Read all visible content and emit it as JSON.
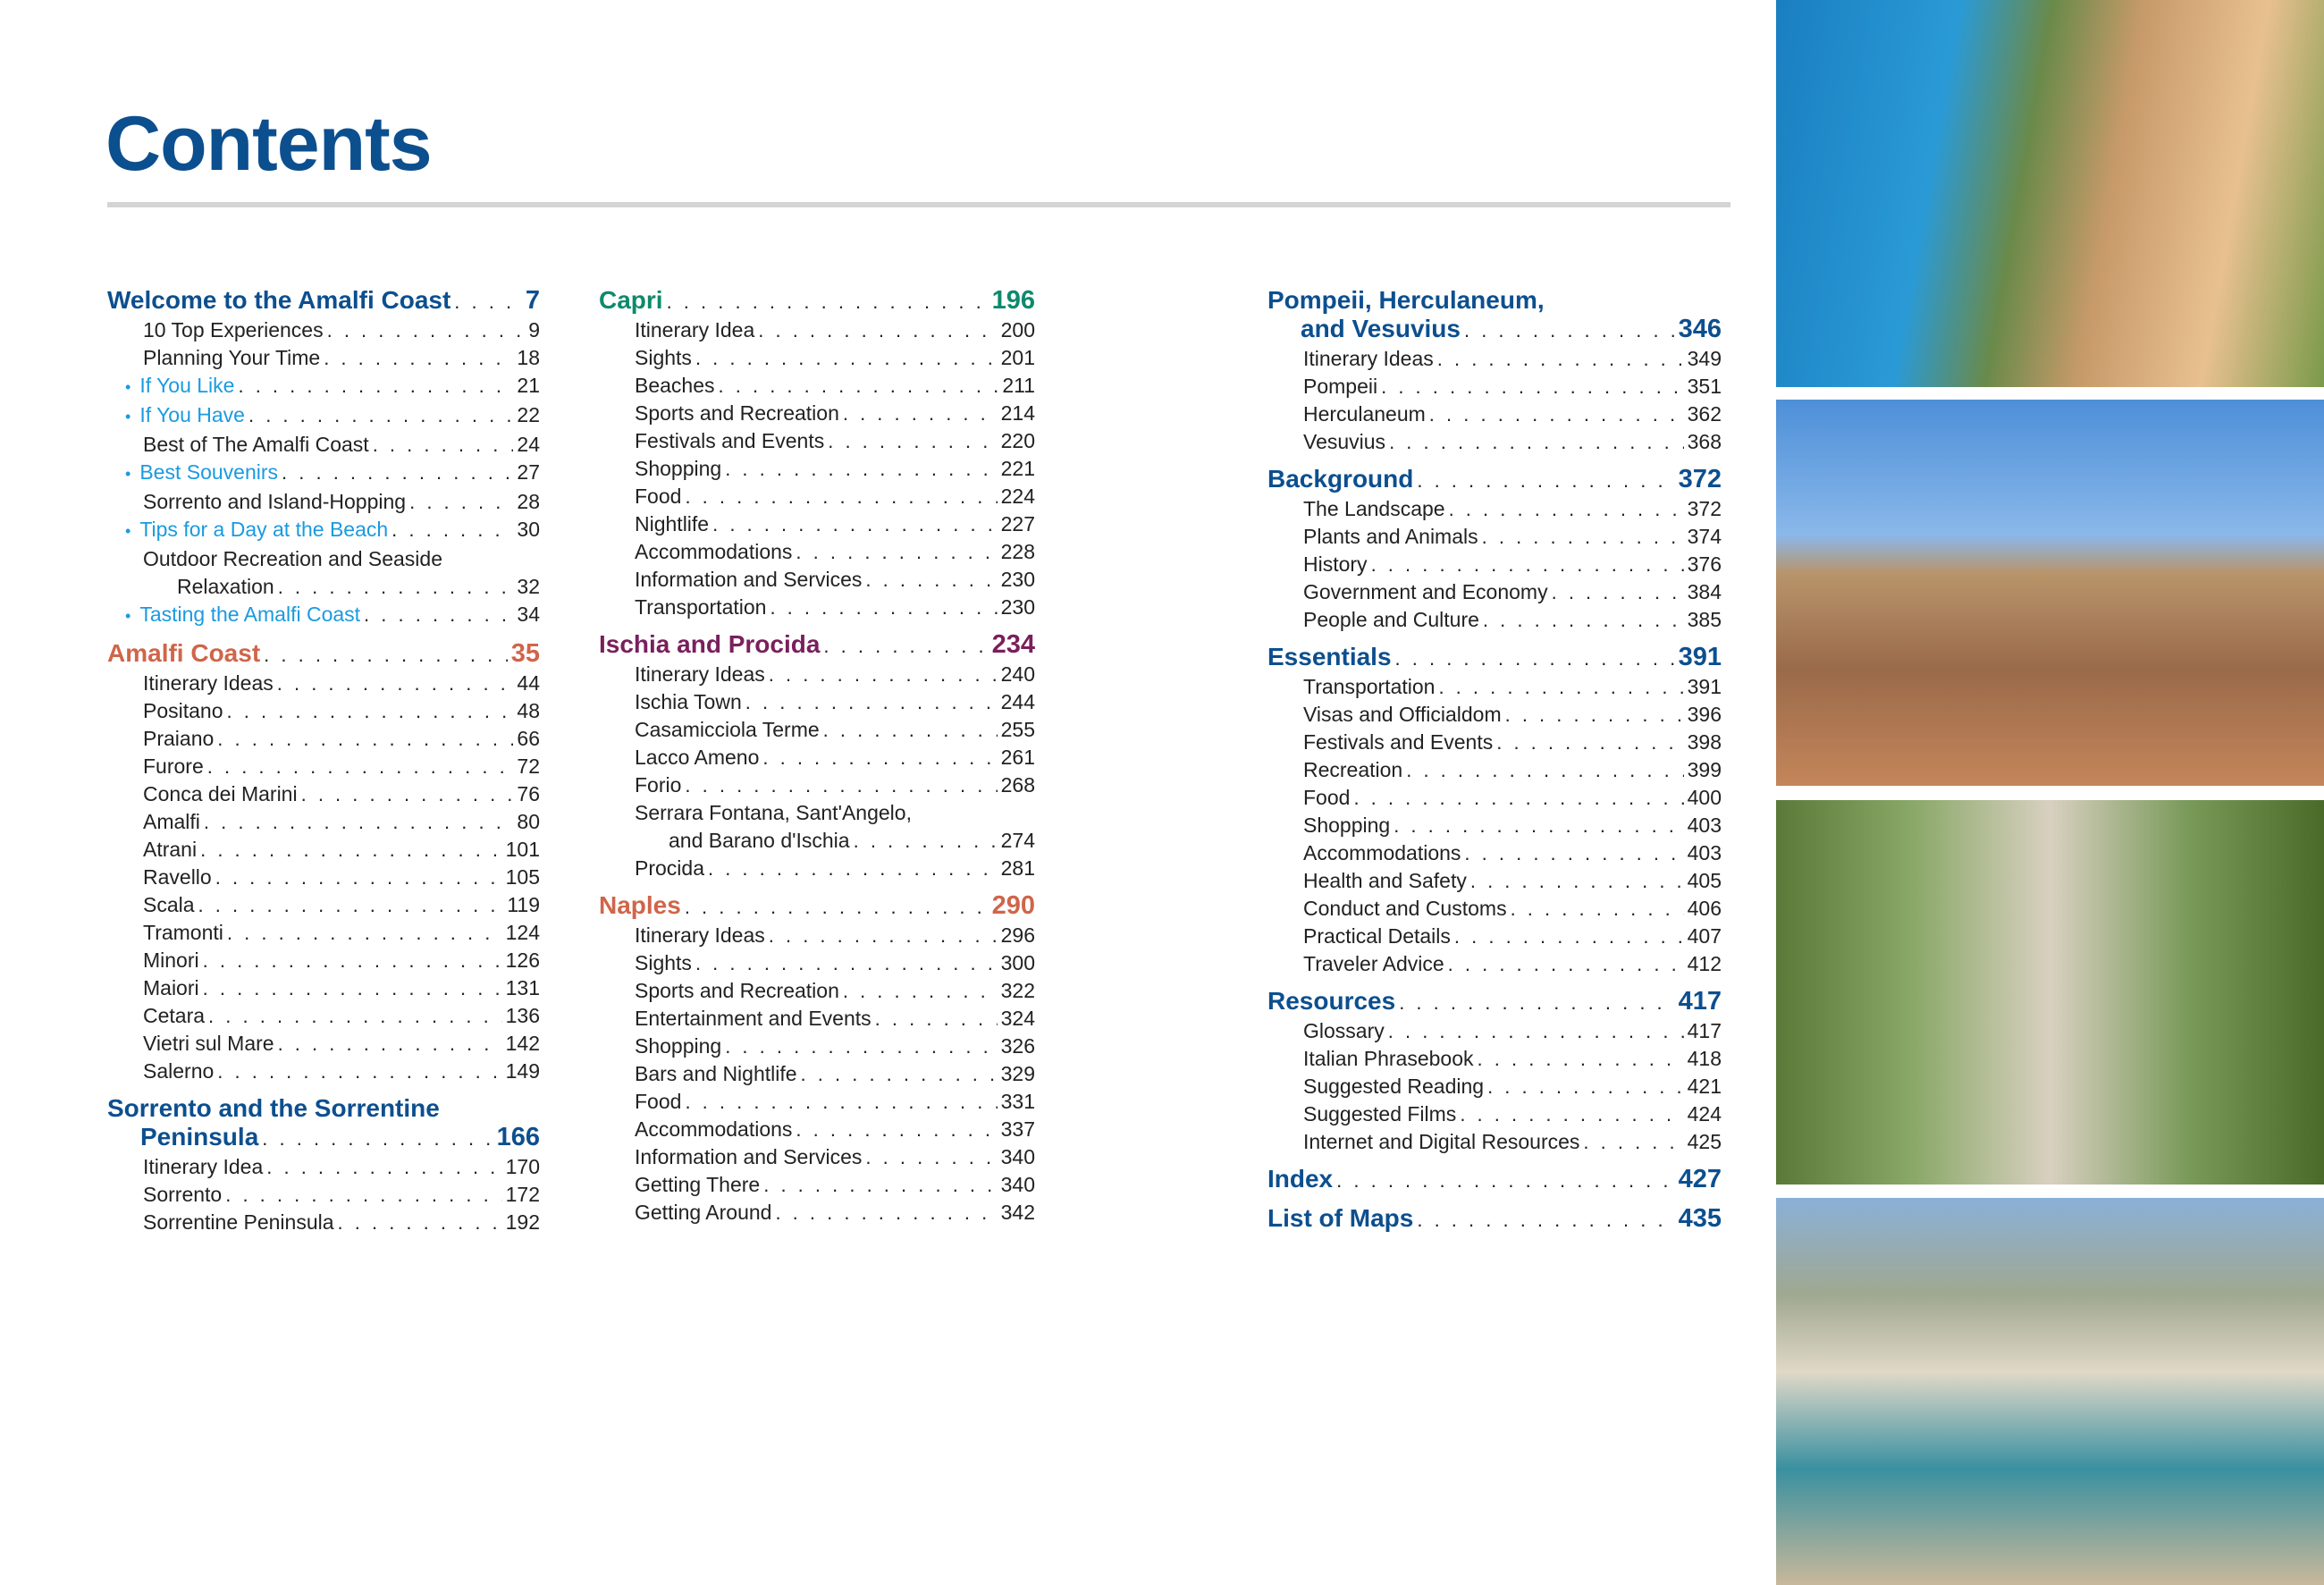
{
  "page_title": "Contents",
  "colors": {
    "title_blue": "#0c4f8f",
    "highlight": "#1a9ae0",
    "amalfi": "#d0654a",
    "capri": "#0d8a6c",
    "ischia": "#7a1f5c",
    "naples": "#d0654a",
    "rule": "#d4d4d4"
  },
  "columns": [
    [
      {
        "title": "Welcome to the Amalfi Coast",
        "page": "7",
        "color": "#0c4f8f",
        "entries": [
          {
            "label": "10 Top Experiences",
            "page": "9"
          },
          {
            "label": "Planning Your Time",
            "page": "18"
          },
          {
            "label": "If You Like",
            "page": "21",
            "highlight": true
          },
          {
            "label": "If You Have",
            "page": "22",
            "highlight": true
          },
          {
            "label": "Best of The Amalfi Coast",
            "page": "24"
          },
          {
            "label": "Best Souvenirs",
            "page": "27",
            "highlight": true
          },
          {
            "label": "Sorrento and Island-Hopping",
            "page": "28"
          },
          {
            "label": "Tips for a Day at the Beach",
            "page": "30",
            "highlight": true
          },
          {
            "label": "Outdoor Recreation and Seaside",
            "label_line2": "Relaxation",
            "page": "32"
          },
          {
            "label": "Tasting the Amalfi Coast",
            "page": "34",
            "highlight": true
          }
        ]
      },
      {
        "title": "Amalfi Coast",
        "page": "35",
        "color": "#d0654a",
        "entries": [
          {
            "label": "Itinerary Ideas",
            "page": "44"
          },
          {
            "label": "Positano",
            "page": "48"
          },
          {
            "label": "Praiano",
            "page": "66"
          },
          {
            "label": "Furore",
            "page": "72"
          },
          {
            "label": "Conca dei Marini",
            "page": "76"
          },
          {
            "label": "Amalfi",
            "page": "80"
          },
          {
            "label": "Atrani",
            "page": "101"
          },
          {
            "label": "Ravello",
            "page": "105"
          },
          {
            "label": "Scala",
            "page": "119"
          },
          {
            "label": "Tramonti",
            "page": "124"
          },
          {
            "label": "Minori",
            "page": "126"
          },
          {
            "label": "Maiori",
            "page": "131"
          },
          {
            "label": "Cetara",
            "page": "136"
          },
          {
            "label": "Vietri sul Mare",
            "page": "142"
          },
          {
            "label": "Salerno",
            "page": "149"
          }
        ]
      },
      {
        "title": "Sorrento and the Sorrentine",
        "title_line2": "Peninsula",
        "page": "166",
        "color": "#0c4f8f",
        "entries": [
          {
            "label": "Itinerary Idea",
            "page": "170"
          },
          {
            "label": "Sorrento",
            "page": "172"
          },
          {
            "label": "Sorrentine Peninsula",
            "page": "192"
          }
        ]
      }
    ],
    [
      {
        "title": "Capri",
        "page": "196",
        "color": "#0d8a6c",
        "entries": [
          {
            "label": "Itinerary Idea",
            "page": "200"
          },
          {
            "label": "Sights",
            "page": "201"
          },
          {
            "label": "Beaches",
            "page": "211"
          },
          {
            "label": "Sports and Recreation",
            "page": "214"
          },
          {
            "label": "Festivals and Events",
            "page": "220"
          },
          {
            "label": "Shopping",
            "page": "221"
          },
          {
            "label": "Food",
            "page": "224"
          },
          {
            "label": "Nightlife",
            "page": "227"
          },
          {
            "label": "Accommodations",
            "page": "228"
          },
          {
            "label": "Information and Services",
            "page": "230"
          },
          {
            "label": "Transportation",
            "page": "230"
          }
        ]
      },
      {
        "title": "Ischia and Procida",
        "page": "234",
        "color": "#7a1f5c",
        "entries": [
          {
            "label": "Itinerary Ideas",
            "page": "240"
          },
          {
            "label": "Ischia Town",
            "page": "244"
          },
          {
            "label": "Casamicciola Terme",
            "page": "255"
          },
          {
            "label": "Lacco Ameno",
            "page": "261"
          },
          {
            "label": "Forio",
            "page": "268"
          },
          {
            "label": "Serrara Fontana, Sant'Angelo,",
            "label_line2": "and Barano d'Ischia",
            "page": "274"
          },
          {
            "label": "Procida",
            "page": "281"
          }
        ]
      },
      {
        "title": "Naples",
        "page": "290",
        "color": "#d0654a",
        "entries": [
          {
            "label": "Itinerary Ideas",
            "page": "296"
          },
          {
            "label": "Sights",
            "page": "300"
          },
          {
            "label": "Sports and Recreation",
            "page": "322"
          },
          {
            "label": "Entertainment and Events",
            "page": "324"
          },
          {
            "label": "Shopping",
            "page": "326"
          },
          {
            "label": "Bars and Nightlife",
            "page": "329"
          },
          {
            "label": "Food",
            "page": "331"
          },
          {
            "label": "Accommodations",
            "page": "337"
          },
          {
            "label": "Information and Services",
            "page": "340"
          },
          {
            "label": "Getting There",
            "page": "340"
          },
          {
            "label": "Getting Around",
            "page": "342"
          }
        ]
      }
    ],
    [
      {
        "title": "Pompeii, Herculaneum,",
        "title_line2": "and Vesuvius",
        "page": "346",
        "color": "#0c4f8f",
        "entries": [
          {
            "label": "Itinerary Ideas",
            "page": "349"
          },
          {
            "label": "Pompeii",
            "page": "351"
          },
          {
            "label": "Herculaneum",
            "page": "362"
          },
          {
            "label": "Vesuvius",
            "page": "368"
          }
        ]
      },
      {
        "title": "Background",
        "page": "372",
        "color": "#0c4f8f",
        "entries": [
          {
            "label": "The Landscape",
            "page": "372"
          },
          {
            "label": "Plants and Animals",
            "page": "374"
          },
          {
            "label": "History",
            "page": "376"
          },
          {
            "label": "Government and Economy",
            "page": "384"
          },
          {
            "label": "People and Culture",
            "page": "385"
          }
        ]
      },
      {
        "title": "Essentials",
        "page": "391",
        "color": "#0c4f8f",
        "entries": [
          {
            "label": "Transportation",
            "page": "391"
          },
          {
            "label": "Visas and Officialdom",
            "page": "396"
          },
          {
            "label": "Festivals and Events",
            "page": "398"
          },
          {
            "label": "Recreation",
            "page": "399"
          },
          {
            "label": "Food",
            "page": "400"
          },
          {
            "label": "Shopping",
            "page": "403"
          },
          {
            "label": "Accommodations",
            "page": "403"
          },
          {
            "label": "Health and Safety",
            "page": "405"
          },
          {
            "label": "Conduct and Customs",
            "page": "406"
          },
          {
            "label": "Practical Details",
            "page": "407"
          },
          {
            "label": "Traveler Advice",
            "page": "412"
          }
        ]
      },
      {
        "title": "Resources",
        "page": "417",
        "color": "#0c4f8f",
        "entries": [
          {
            "label": "Glossary",
            "page": "417"
          },
          {
            "label": "Italian Phrasebook",
            "page": "418"
          },
          {
            "label": "Suggested Reading",
            "page": "421"
          },
          {
            "label": "Suggested Films",
            "page": "424"
          },
          {
            "label": "Internet and Digital Resources",
            "page": "425"
          }
        ]
      },
      {
        "title": "Index",
        "page": "427",
        "color": "#0c4f8f",
        "entries": []
      },
      {
        "title": "List of Maps",
        "page": "435",
        "color": "#0c4f8f",
        "entries": []
      }
    ]
  ],
  "photos": [
    {
      "icon": "photo-positano-cliffside-village"
    },
    {
      "icon": "photo-naples-castel-dell-ovo"
    },
    {
      "icon": "photo-tree-lined-path"
    },
    {
      "icon": "photo-capri-marina-grande"
    }
  ]
}
